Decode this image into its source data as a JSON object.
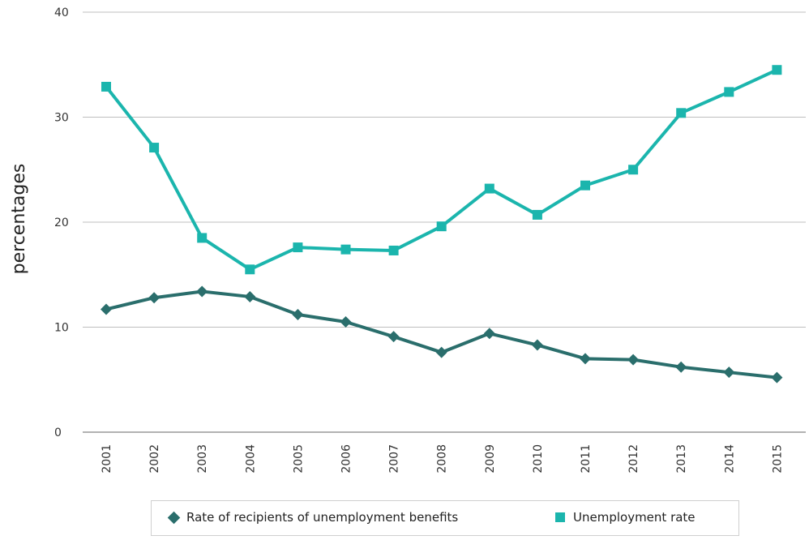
{
  "chart_data": {
    "type": "line",
    "x": [
      "2001",
      "2002",
      "2003",
      "2004",
      "2005",
      "2006",
      "2007",
      "2008",
      "2009",
      "2010",
      "2011",
      "2012",
      "2013",
      "2014",
      "2015"
    ],
    "series": [
      {
        "name": "Rate of recipients of unemployment benefits",
        "marker": "diamond",
        "color": "#2a6e6c",
        "values": [
          11.7,
          12.8,
          13.4,
          12.9,
          11.2,
          10.5,
          9.1,
          7.6,
          9.4,
          8.3,
          7.0,
          6.9,
          6.2,
          5.7,
          5.2
        ]
      },
      {
        "name": "Unemployment rate",
        "marker": "square",
        "color": "#1bb5ad",
        "values": [
          32.9,
          27.1,
          18.5,
          15.5,
          17.6,
          17.4,
          17.3,
          19.6,
          23.2,
          20.7,
          23.5,
          25.0,
          30.4,
          32.4,
          34.5
        ]
      }
    ],
    "ylabel": "percentages",
    "ylim": [
      0,
      40
    ],
    "yticks": [
      "0",
      "10",
      "20",
      "30",
      "40"
    ],
    "grid": true,
    "legend_position": "bottom"
  }
}
